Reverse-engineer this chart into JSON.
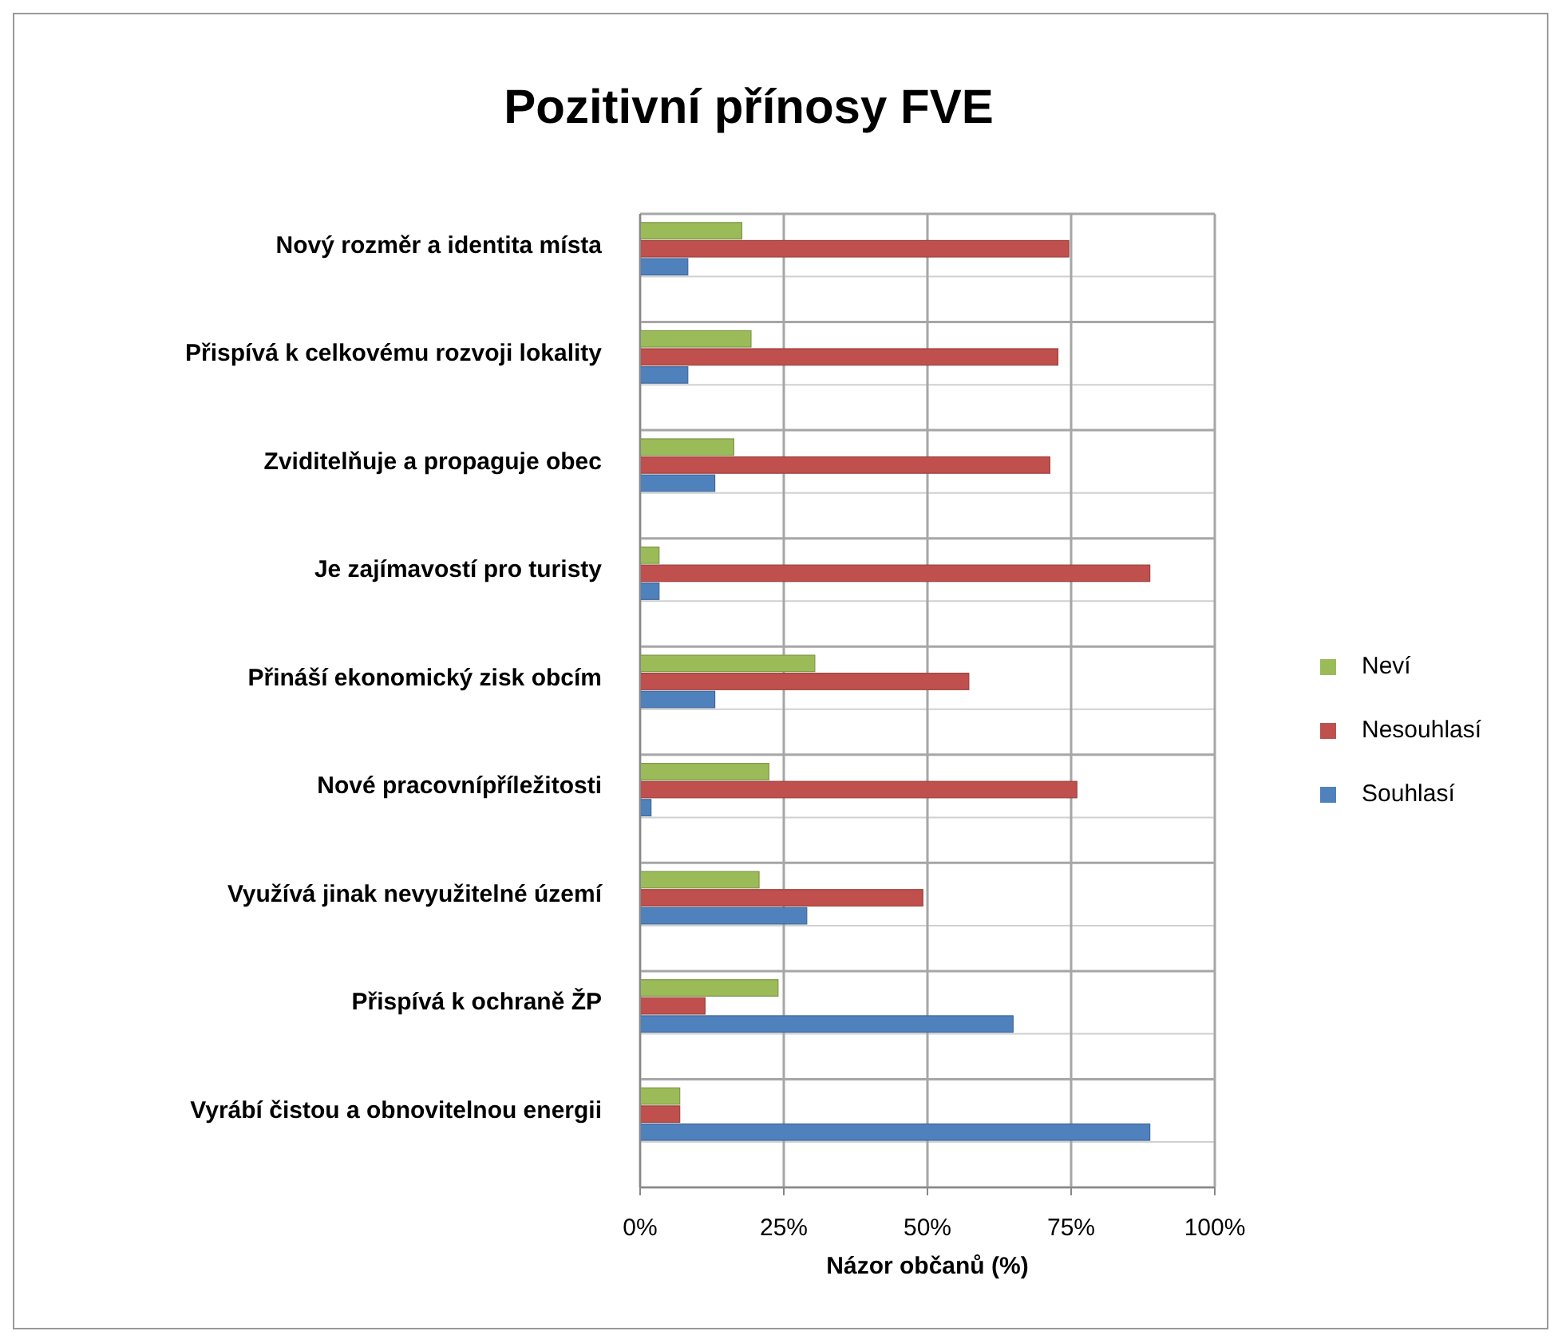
{
  "chart_data": {
    "type": "bar",
    "orientation": "horizontal",
    "title": "Pozitivní přínosy FVE",
    "xlabel": "Názor občanů (%)",
    "categories": [
      "Nový rozměr a identita místa",
      "Přispívá k celkovému rozvoji lokality",
      "Zviditelňuje a propaguje obec",
      "Je zajímavostí pro turisty",
      "Přináší ekonomický zisk obcím",
      "Nové pracovnípříležitosti",
      "Využívá jinak nevyužitelné území",
      "Přispívá k ochraně ŽP",
      "Vyrábí čistou a obnovitelnou energii"
    ],
    "series": [
      {
        "name": "Neví",
        "color": "#9bbb59",
        "values": [
          17.7,
          19.3,
          16.3,
          3.3,
          30.4,
          22.4,
          20.7,
          24,
          6.9
        ]
      },
      {
        "name": "Nesouhlasí",
        "color": "#c0504d",
        "values": [
          74.6,
          72.7,
          71.3,
          88.7,
          57.2,
          76,
          49.2,
          11.3,
          6.9
        ]
      },
      {
        "name": "Souhlasí",
        "color": "#4f81bd",
        "values": [
          8.3,
          8.3,
          13,
          3.3,
          13,
          1.9,
          29,
          64.9,
          88.7
        ]
      }
    ],
    "xlim": [
      0,
      100
    ],
    "xticks": [
      {
        "value": 0,
        "label": "0%"
      },
      {
        "value": 25,
        "label": "25%"
      },
      {
        "value": 50,
        "label": "50%"
      },
      {
        "value": 75,
        "label": "75%"
      },
      {
        "value": 100,
        "label": "100%"
      }
    ],
    "grid": true,
    "legend": "right"
  }
}
